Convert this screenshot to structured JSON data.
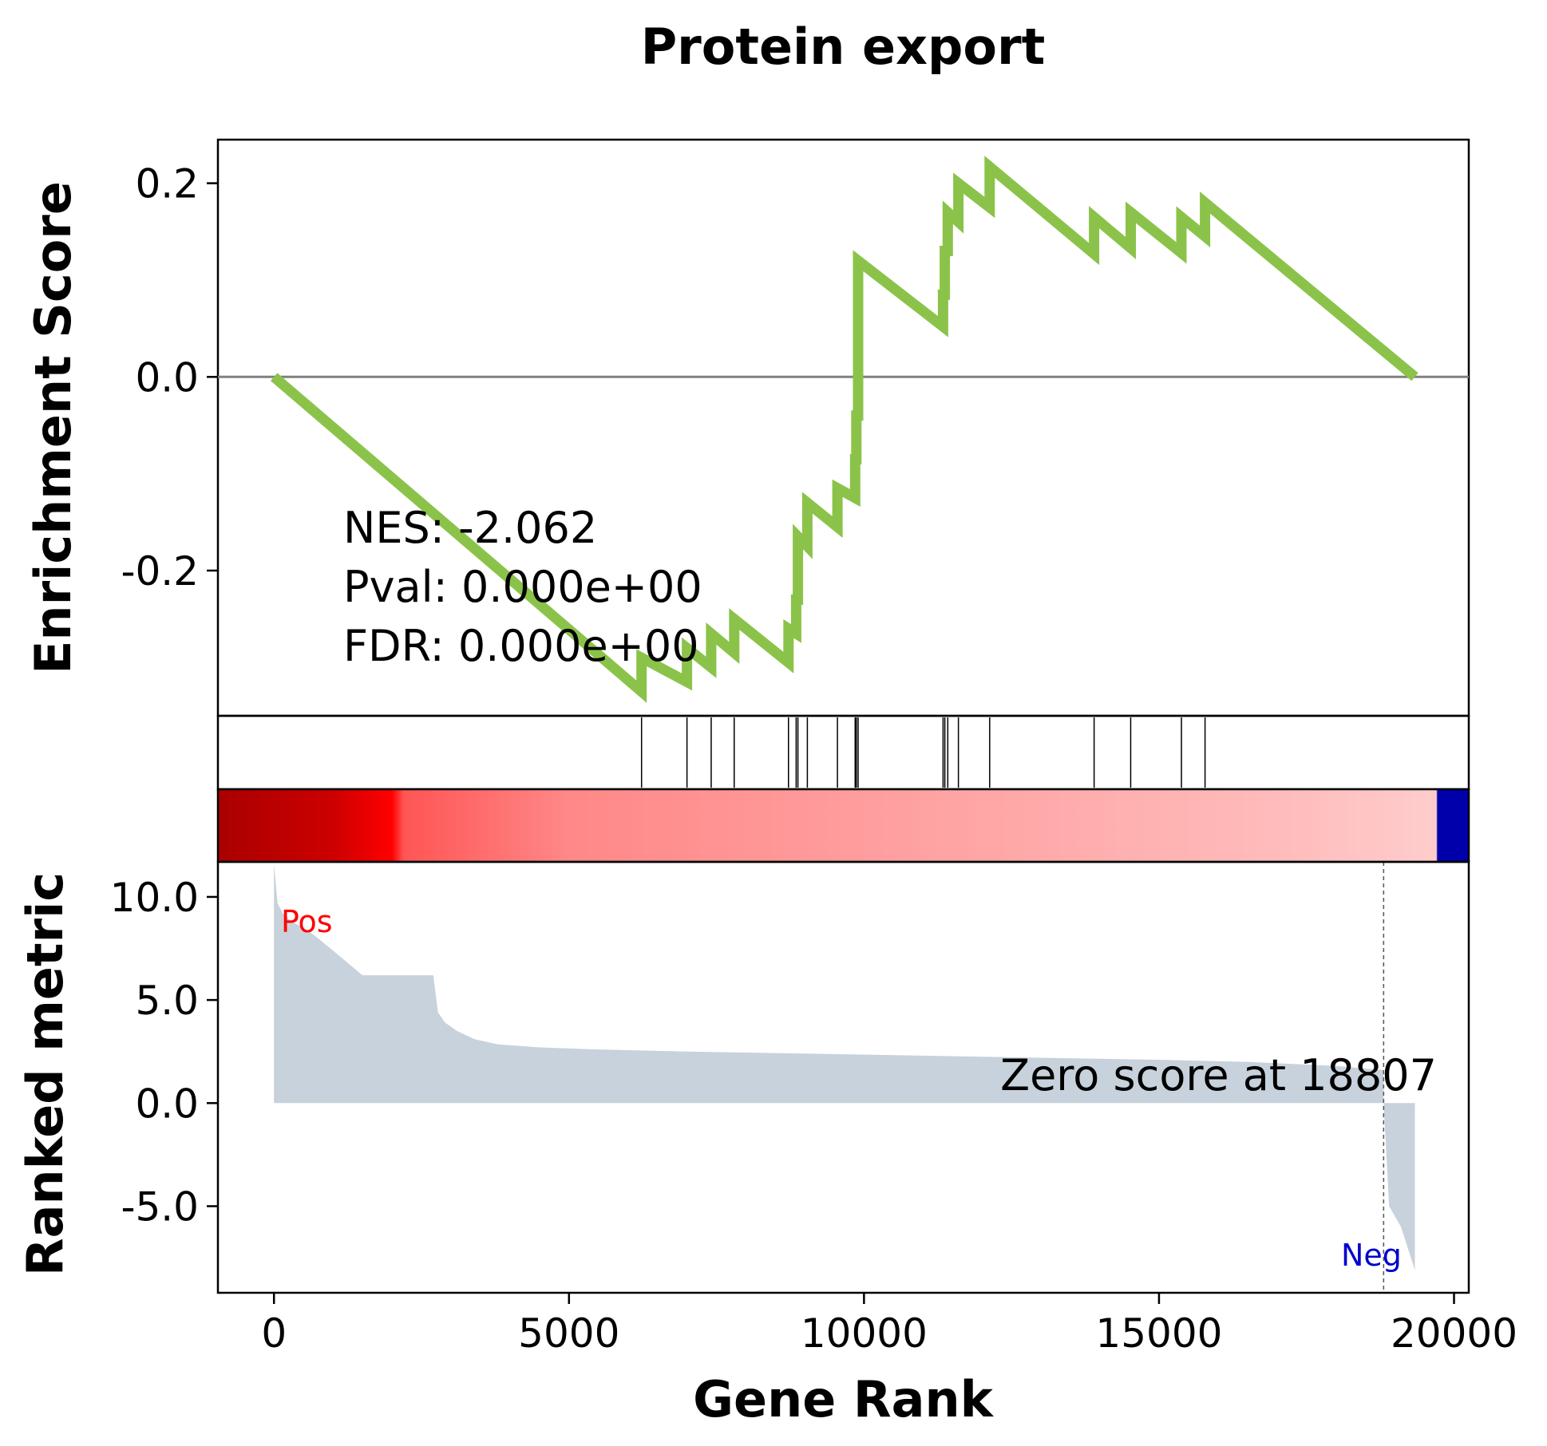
{
  "chart_data": {
    "type": "line",
    "title": "Protein export",
    "xlabel": "Gene Rank",
    "es_panel": {
      "ylabel": "Enrichment Score",
      "yticks": [
        0.2,
        0.0,
        -0.2
      ],
      "ytick_labels": [
        "0.2",
        "0.0",
        "-0.2"
      ],
      "ylim": [
        -0.35,
        0.245
      ],
      "line_color": "#8bc34a",
      "zero_line_color": "#808080",
      "stats": [
        "NES: -2.062",
        "Pval: 0.000e+00",
        "FDR: 0.000e+00"
      ],
      "hits": [
        6230,
        7000,
        7410,
        7800,
        8720,
        8850,
        8880,
        9040,
        9550,
        9850,
        9870,
        9900,
        11340,
        11370,
        11420,
        11600,
        12130,
        13900,
        14520,
        15380,
        15780
      ],
      "x": [
        0,
        6230,
        6230,
        7000,
        7000,
        7410,
        7410,
        7800,
        7800,
        8720,
        8720,
        8850,
        8850,
        8880,
        8880,
        9040,
        9040,
        9550,
        9550,
        9850,
        9850,
        9870,
        9870,
        9900,
        9900,
        11340,
        11340,
        11370,
        11370,
        11420,
        11420,
        11600,
        11600,
        12130,
        12130,
        13900,
        13900,
        14520,
        14520,
        15380,
        15380,
        15780,
        15780,
        19337
      ],
      "y": [
        0.0,
        -0.325,
        -0.29,
        -0.315,
        -0.28,
        -0.3,
        -0.265,
        -0.285,
        -0.25,
        -0.295,
        -0.26,
        -0.265,
        -0.23,
        -0.23,
        -0.165,
        -0.175,
        -0.13,
        -0.155,
        -0.115,
        -0.125,
        -0.085,
        -0.085,
        -0.04,
        -0.04,
        0.12,
        0.052,
        0.085,
        0.085,
        0.13,
        0.13,
        0.17,
        0.16,
        0.2,
        0.175,
        0.217,
        0.127,
        0.165,
        0.133,
        0.17,
        0.128,
        0.165,
        0.145,
        0.18,
        0.0
      ]
    },
    "rank_panel": {
      "ylabel": "Ranked metric",
      "yticks": [
        10.0,
        5.0,
        0.0,
        -5.0
      ],
      "ytick_labels": [
        "10.0",
        "5.0",
        "0.0",
        "-5.0"
      ],
      "ylim": [
        -9.2,
        11.7
      ],
      "fill_color": "#c8d2dc",
      "pos_label": "Pos",
      "neg_label": "Neg",
      "pos_color": "#ff0000",
      "neg_color": "#0000cc",
      "zero_score_label": "Zero score at 18807",
      "zero_score_rank": 18807,
      "metric_x": [
        0,
        60,
        150,
        300,
        500,
        700,
        1000,
        1500,
        2000,
        2700,
        2780,
        2900,
        3100,
        3400,
        3800,
        4500,
        5500,
        7000,
        9000,
        11000,
        13000,
        15000,
        16500,
        18000,
        18807,
        18808,
        18900,
        19100,
        19337
      ],
      "metric_y": [
        11.6,
        9.7,
        9.2,
        8.8,
        8.5,
        8.1,
        7.4,
        6.2,
        6.2,
        6.2,
        4.4,
        3.9,
        3.5,
        3.1,
        2.85,
        2.7,
        2.6,
        2.5,
        2.4,
        2.3,
        2.2,
        2.1,
        2.0,
        1.8,
        1.6,
        0.0,
        -5.0,
        -6.0,
        -8.1
      ]
    },
    "xticks": [
      0,
      5000,
      10000,
      15000,
      20000
    ],
    "xtick_labels": [
      "0",
      "5000",
      "10000",
      "15000",
      "20000"
    ],
    "xlim": [
      -950,
      20250
    ],
    "n_genes": 19337,
    "heatmap_colors": [
      "#aa0000",
      "#cc0000",
      "#ff0000",
      "#ff5555",
      "#ff8888",
      "#ff9999",
      "#ffaaaa",
      "#ffbbbb",
      "#ffcccc",
      "#0000aa"
    ],
    "heatmap_stops": [
      0,
      1000,
      2000,
      2200,
      5000,
      9000,
      13000,
      17000,
      19700,
      19700
    ]
  }
}
